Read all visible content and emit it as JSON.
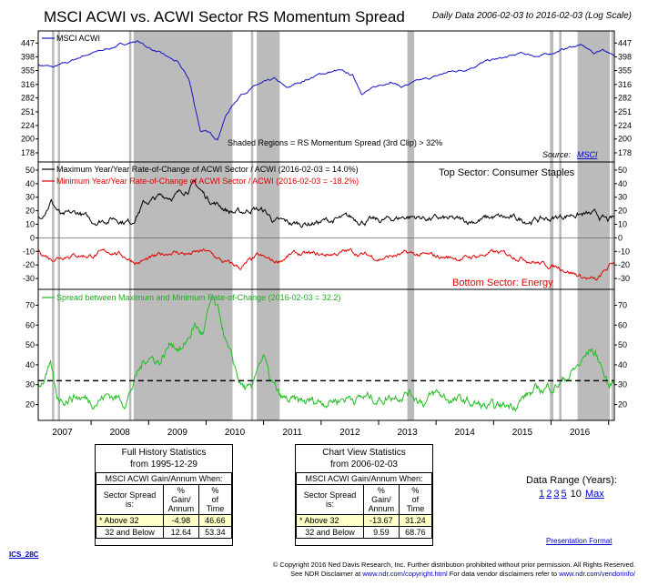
{
  "header": {
    "title": "MSCI ACWI vs. ACWI Sector RS Momentum Spread",
    "subtitle": "Daily Data 2006-02-03 to 2016-02-03 (Log Scale)"
  },
  "chart_data": [
    {
      "type": "line",
      "panel": "top",
      "scale": "log",
      "series": [
        {
          "name": "MSCI ACWI",
          "color": "#1515c8"
        }
      ],
      "y_ticks": [
        178,
        200,
        224,
        251,
        282,
        316,
        355,
        398,
        447
      ],
      "ylim": [
        170,
        480
      ],
      "anchors": [
        [
          2006.1,
          372
        ],
        [
          2006.35,
          365
        ],
        [
          2006.6,
          380
        ],
        [
          2006.9,
          405
        ],
        [
          2007.2,
          420
        ],
        [
          2007.5,
          440
        ],
        [
          2007.8,
          455
        ],
        [
          2008.0,
          430
        ],
        [
          2008.3,
          400
        ],
        [
          2008.5,
          380
        ],
        [
          2008.7,
          330
        ],
        [
          2008.8,
          265
        ],
        [
          2008.9,
          215
        ],
        [
          2009.05,
          210
        ],
        [
          2009.2,
          200
        ],
        [
          2009.35,
          245
        ],
        [
          2009.6,
          290
        ],
        [
          2009.9,
          315
        ],
        [
          2010.2,
          330
        ],
        [
          2010.4,
          305
        ],
        [
          2010.6,
          320
        ],
        [
          2011.0,
          345
        ],
        [
          2011.3,
          355
        ],
        [
          2011.55,
          340
        ],
        [
          2011.7,
          295
        ],
        [
          2011.9,
          305
        ],
        [
          2012.2,
          325
        ],
        [
          2012.4,
          310
        ],
        [
          2012.7,
          325
        ],
        [
          2012.95,
          335
        ],
        [
          2013.2,
          350
        ],
        [
          2013.5,
          358
        ],
        [
          2013.9,
          385
        ],
        [
          2014.2,
          395
        ],
        [
          2014.5,
          410
        ],
        [
          2014.8,
          400
        ],
        [
          2015.0,
          410
        ],
        [
          2015.3,
          430
        ],
        [
          2015.5,
          440
        ],
        [
          2015.6,
          430
        ],
        [
          2015.75,
          410
        ],
        [
          2015.9,
          425
        ],
        [
          2016.0,
          415
        ],
        [
          2016.1,
          398
        ]
      ]
    },
    {
      "type": "line",
      "panel": "middle",
      "series": [
        {
          "name": "Maximum Year/Year Rate-of-Change of ACWI Sector / ACWI (2016-02-03 = 14.0%)",
          "color": "#000000",
          "anchors": [
            [
              2006.1,
              15
            ],
            [
              2006.3,
              28
            ],
            [
              2006.5,
              15
            ],
            [
              2006.8,
              18
            ],
            [
              2007.0,
              12
            ],
            [
              2007.4,
              15
            ],
            [
              2007.7,
              12
            ],
            [
              2007.9,
              25
            ],
            [
              2008.2,
              30
            ],
            [
              2008.5,
              32
            ],
            [
              2008.8,
              40
            ],
            [
              2009.0,
              30
            ],
            [
              2009.2,
              25
            ],
            [
              2009.4,
              20
            ],
            [
              2009.6,
              18
            ],
            [
              2009.8,
              22
            ],
            [
              2010.0,
              20
            ],
            [
              2010.2,
              12
            ],
            [
              2010.5,
              10
            ],
            [
              2011.0,
              12
            ],
            [
              2011.5,
              14
            ],
            [
              2012.0,
              12
            ],
            [
              2012.5,
              16
            ],
            [
              2013.0,
              14
            ],
            [
              2013.5,
              12
            ],
            [
              2014.0,
              15
            ],
            [
              2014.5,
              13
            ],
            [
              2015.0,
              14
            ],
            [
              2015.4,
              18
            ],
            [
              2015.8,
              16
            ],
            [
              2016.0,
              12
            ],
            [
              2016.1,
              14
            ]
          ]
        },
        {
          "name": "Minimum Year/Year Rate-of-Change of ACWI Sector / ACWI (2016-02-03 = -18.2%)",
          "color": "#e00000",
          "anchors": [
            [
              2006.1,
              -10
            ],
            [
              2006.3,
              -15
            ],
            [
              2006.6,
              -12
            ],
            [
              2007.0,
              -13
            ],
            [
              2007.4,
              -10
            ],
            [
              2007.8,
              -18
            ],
            [
              2008.1,
              -15
            ],
            [
              2008.4,
              -10
            ],
            [
              2008.7,
              -12
            ],
            [
              2009.0,
              -10
            ],
            [
              2009.3,
              -18
            ],
            [
              2009.6,
              -22
            ],
            [
              2009.9,
              -14
            ],
            [
              2010.2,
              -18
            ],
            [
              2010.5,
              -12
            ],
            [
              2011.0,
              -13
            ],
            [
              2011.5,
              -10
            ],
            [
              2012.0,
              -15
            ],
            [
              2012.5,
              -12
            ],
            [
              2013.0,
              -14
            ],
            [
              2013.5,
              -15
            ],
            [
              2014.0,
              -11
            ],
            [
              2014.5,
              -14
            ],
            [
              2014.9,
              -20
            ],
            [
              2015.2,
              -22
            ],
            [
              2015.5,
              -28
            ],
            [
              2015.8,
              -32
            ],
            [
              2016.0,
              -22
            ],
            [
              2016.1,
              -18
            ]
          ]
        }
      ],
      "y_ticks": [
        -30,
        -20,
        -10,
        0,
        10,
        20,
        30,
        40,
        50
      ],
      "ylim": [
        -38,
        56
      ]
    },
    {
      "type": "line",
      "panel": "bottom",
      "series": [
        {
          "name": "Spread between Maximum and Minimum Rate-of-Change (2016-02-03 = 32.2)",
          "color": "#22bb22"
        }
      ],
      "anchors": [
        [
          2006.1,
          30
        ],
        [
          2006.3,
          38
        ],
        [
          2006.4,
          22
        ],
        [
          2006.7,
          25
        ],
        [
          2007.0,
          22
        ],
        [
          2007.3,
          25
        ],
        [
          2007.6,
          22
        ],
        [
          2007.8,
          35
        ],
        [
          2008.0,
          45
        ],
        [
          2008.2,
          42
        ],
        [
          2008.4,
          52
        ],
        [
          2008.6,
          48
        ],
        [
          2008.8,
          60
        ],
        [
          2008.95,
          55
        ],
        [
          2009.1,
          72
        ],
        [
          2009.25,
          62
        ],
        [
          2009.4,
          45
        ],
        [
          2009.6,
          30
        ],
        [
          2009.8,
          25
        ],
        [
          2009.9,
          40
        ],
        [
          2010.0,
          45
        ],
        [
          2010.1,
          32
        ],
        [
          2010.3,
          22
        ],
        [
          2010.6,
          20
        ],
        [
          2011.0,
          22
        ],
        [
          2011.5,
          24
        ],
        [
          2012.0,
          23
        ],
        [
          2012.5,
          27
        ],
        [
          2012.8,
          22
        ],
        [
          2013.0,
          25
        ],
        [
          2013.3,
          22
        ],
        [
          2013.7,
          20
        ],
        [
          2014.0,
          17
        ],
        [
          2014.3,
          20
        ],
        [
          2014.6,
          25
        ],
        [
          2014.9,
          28
        ],
        [
          2015.2,
          32
        ],
        [
          2015.5,
          40
        ],
        [
          2015.7,
          48
        ],
        [
          2015.85,
          42
        ],
        [
          2016.0,
          28
        ],
        [
          2016.1,
          32
        ]
      ],
      "reference_line": 32,
      "y_ticks": [
        20,
        30,
        40,
        50,
        60,
        70
      ],
      "ylim": [
        12,
        78
      ]
    }
  ],
  "x_axis": {
    "range": [
      2006.08,
      2016.1
    ],
    "labels": [
      "2007",
      "2008",
      "2009",
      "2010",
      "2011",
      "2012",
      "2013",
      "2014",
      "2015",
      "2016"
    ]
  },
  "shaded_regions": [
    [
      2006.32,
      2006.36
    ],
    [
      2006.42,
      2006.46
    ],
    [
      2007.66,
      2007.7
    ],
    [
      2007.74,
      2009.46
    ],
    [
      2009.78,
      2009.82
    ],
    [
      2009.88,
      2010.28
    ],
    [
      2012.5,
      2012.62
    ],
    [
      2014.98,
      2015.04
    ],
    [
      2015.14,
      2015.18
    ],
    [
      2015.46,
      2016.02
    ],
    [
      2016.05,
      2016.08
    ]
  ],
  "annotations": {
    "shaded_note": "Shaded Regions = RS Momentum Spread (3rd Clip) > 32%",
    "source_label": "Source:",
    "source_link": "MSCI",
    "top_sector": "Top Sector: Consumer Staples",
    "bottom_sector": "Bottom Sector: Energy"
  },
  "stats_left": {
    "title1": "Full History Statistics",
    "title2": "from 1995-12-29",
    "header": "MSCI ACWI Gain/Annum When:",
    "col1": "Sector Spread is:",
    "col2a": "% Gain/",
    "col2b": "Annum",
    "col3a": "%",
    "col3b": "of Time",
    "rows": [
      {
        "label": "* Above 32",
        "gain": "-4.98",
        "time": "46.66"
      },
      {
        "label": "32 and Below",
        "gain": "12.64",
        "time": "53.34"
      }
    ]
  },
  "stats_right": {
    "title1": "Chart View Statistics",
    "title2": "from 2006-02-03",
    "header": "MSCI ACWI Gain/Annum When:",
    "col1": "Sector Spread is:",
    "col2a": "% Gain/",
    "col2b": "Annum",
    "col3a": "%",
    "col3b": "of Time",
    "rows": [
      {
        "label": "* Above 32",
        "gain": "-13.67",
        "time": "31.24"
      },
      {
        "label": "32 and Below",
        "gain": "9.59",
        "time": "68.76"
      }
    ]
  },
  "data_range": {
    "label": "Data Range (Years):",
    "options": [
      "1",
      "2",
      "3",
      "5",
      "10",
      "Max"
    ]
  },
  "footer": {
    "presentation": "Presentation Format",
    "ics": "ICS_28C",
    "copyright1": "© Copyright 2016 Ned Davis Research, Inc. Further distribution prohibited without prior permission. All Rights Reserved.",
    "disclaimer_a": "See NDR Disclaimer at ",
    "disclaimer_link1": "www.ndr.com/copyright.html",
    "disclaimer_b": "  For data vendor disclaimers refer to ",
    "disclaimer_link2": "www.ndr.com/vendorinfo/"
  },
  "colors": {
    "shade": "#bbbbbb",
    "axis": "#000000"
  }
}
